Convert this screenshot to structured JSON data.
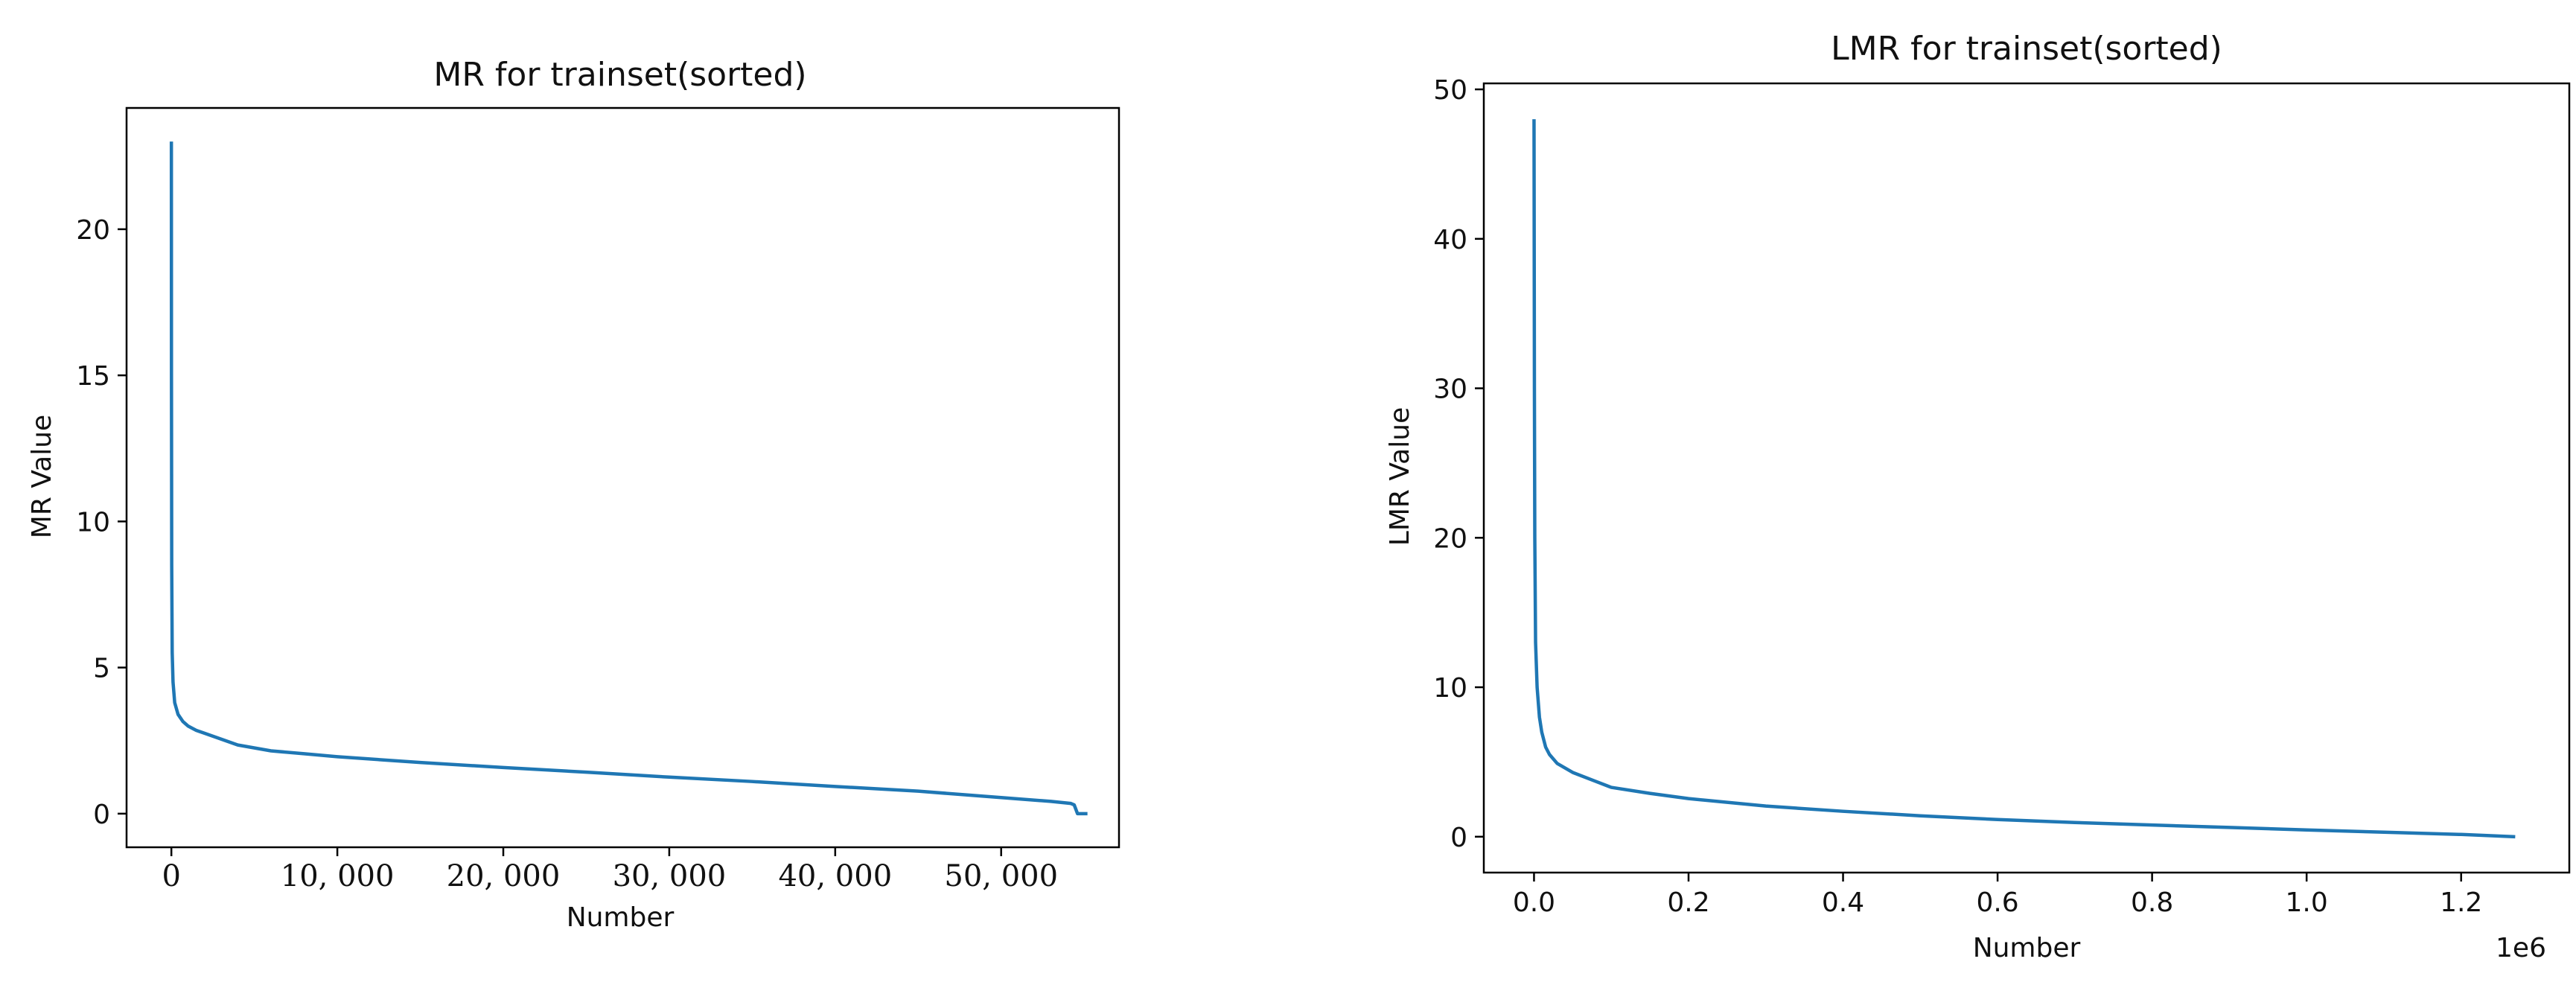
{
  "colors": {
    "line": "#1f77b4",
    "frame": "#000000",
    "background": "#ffffff"
  },
  "chart_data": [
    {
      "type": "line",
      "title": "MR for trainset(sorted)",
      "xlabel": "Number",
      "ylabel": "MR Value",
      "xlim": [
        -2700,
        57100
      ],
      "ylim": [
        -1.15,
        24.15
      ],
      "xticks": [
        0,
        10000,
        20000,
        30000,
        40000,
        50000
      ],
      "xtick_labels": [
        "0",
        "10, 000",
        "20, 000",
        "30, 000",
        "40, 000",
        "50, 000"
      ],
      "yticks": [
        0,
        5,
        10,
        15,
        20
      ],
      "ytick_labels": [
        "0",
        "5",
        "10",
        "15",
        "20"
      ],
      "grid": false,
      "series": [
        {
          "x": [
            0,
            5,
            20,
            50,
            100,
            200,
            400,
            700,
            1000,
            1500,
            2000,
            3000,
            4000,
            6000,
            8000,
            10000,
            15000,
            20000,
            25000,
            30000,
            35000,
            40000,
            45000,
            50000,
            53000,
            54200,
            54400,
            54500,
            54600,
            55200
          ],
          "y": [
            23.0,
            15.0,
            8.5,
            5.5,
            4.5,
            3.8,
            3.4,
            3.15,
            3.0,
            2.85,
            2.75,
            2.55,
            2.35,
            2.15,
            2.05,
            1.95,
            1.75,
            1.58,
            1.42,
            1.25,
            1.1,
            0.93,
            0.77,
            0.55,
            0.42,
            0.35,
            0.3,
            0.15,
            0.0,
            0.0
          ]
        }
      ]
    },
    {
      "type": "line",
      "title": "LMR for trainset(sorted)",
      "xlabel": "Number",
      "ylabel": "LMR Value",
      "x_offset_text": "1e6",
      "xlim": [
        -0.065,
        1.34
      ],
      "ylim": [
        -2.4,
        50.4
      ],
      "xticks": [
        0.0,
        0.2,
        0.4,
        0.6,
        0.8,
        1.0,
        1.2
      ],
      "xtick_labels": [
        "0.0",
        "0.2",
        "0.4",
        "0.6",
        "0.8",
        "1.0",
        "1.2"
      ],
      "yticks": [
        0,
        10,
        20,
        30,
        40,
        50
      ],
      "ytick_labels": [
        "0",
        "10",
        "20",
        "30",
        "40",
        "50"
      ],
      "grid": false,
      "series": [
        {
          "x": [
            0.0,
            0.0005,
            0.001,
            0.002,
            0.004,
            0.007,
            0.01,
            0.015,
            0.02,
            0.03,
            0.05,
            0.08,
            0.1,
            0.15,
            0.2,
            0.3,
            0.4,
            0.5,
            0.6,
            0.7,
            0.8,
            0.9,
            1.0,
            1.1,
            1.2,
            1.27
          ],
          "y": [
            48.0,
            30.0,
            20.0,
            13.0,
            10.0,
            8.0,
            7.0,
            6.0,
            5.5,
            4.9,
            4.3,
            3.7,
            3.3,
            2.9,
            2.55,
            2.05,
            1.7,
            1.4,
            1.15,
            0.95,
            0.78,
            0.62,
            0.45,
            0.3,
            0.15,
            0.0
          ]
        }
      ]
    }
  ]
}
